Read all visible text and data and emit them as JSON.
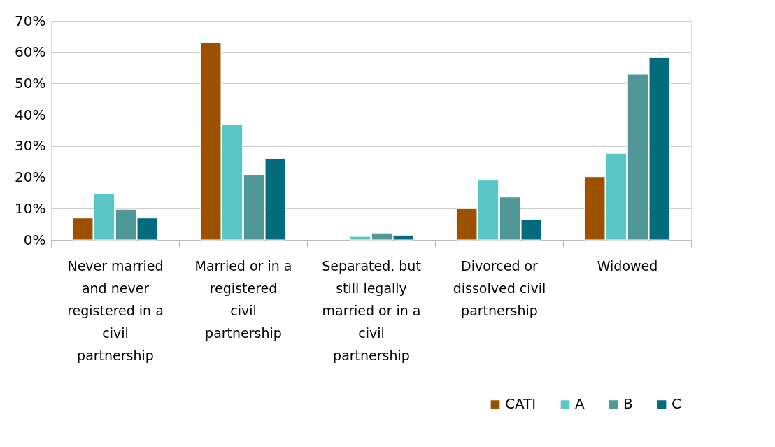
{
  "chart_data": {
    "type": "bar",
    "categories": [
      "Never married and never registered in a civil partnership",
      "Married or in a registered civil partnership",
      "Separated, but still legally married or in a civil partnership",
      "Divorced or dissolved civil partnership",
      "Widowed"
    ],
    "series": [
      {
        "name": "CATI",
        "color": "#9c5100",
        "values": [
          7,
          63,
          null,
          10,
          20.2
        ]
      },
      {
        "name": "A",
        "color": "#5bc6c6",
        "values": [
          14.8,
          37,
          1.1,
          19.1,
          27.7
        ]
      },
      {
        "name": "B",
        "color": "#509898",
        "values": [
          9.8,
          20.9,
          2.2,
          13.7,
          53
        ]
      },
      {
        "name": "C",
        "color": "#036c7c",
        "values": [
          7,
          26,
          1.5,
          6.5,
          58.3
        ]
      }
    ],
    "ylim": [
      0,
      70
    ],
    "yticks": [
      {
        "value": 0,
        "label": "0%"
      },
      {
        "value": 10,
        "label": "10%"
      },
      {
        "value": 20,
        "label": "20%"
      },
      {
        "value": 30,
        "label": "30%"
      },
      {
        "value": 40,
        "label": "40%"
      },
      {
        "value": 50,
        "label": "50%"
      },
      {
        "value": 60,
        "label": "60%"
      },
      {
        "value": 70,
        "label": "70%"
      }
    ],
    "grid": "y",
    "legend": "bottom right"
  }
}
